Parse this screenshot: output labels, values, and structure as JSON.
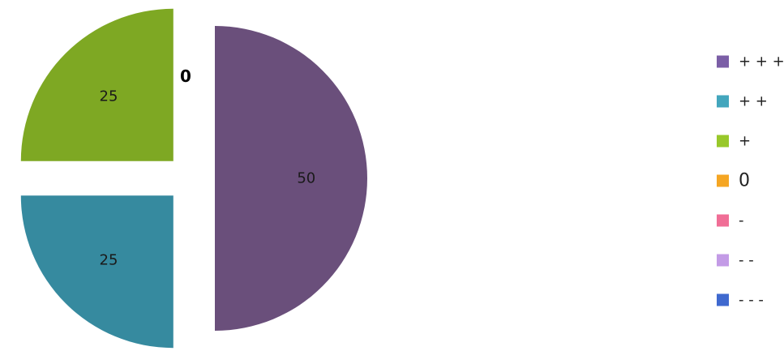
{
  "chart_data": {
    "type": "pie",
    "style": "exploded",
    "categories": [
      "+ + +",
      "+ +",
      "+",
      "0",
      "-",
      "- -",
      "- - -"
    ],
    "values": [
      50,
      25,
      25,
      0,
      0,
      0,
      0
    ],
    "data_labels": [
      "50",
      "25",
      "25",
      "0",
      "",
      "",
      ""
    ],
    "colors": [
      "#6a4f7b",
      "#368a9f",
      "#7ea823",
      "#f5a623",
      "#f06e96",
      "#c39be6",
      "#3f69cf"
    ],
    "legend_colors": [
      "#7b5ea6",
      "#43a6bd",
      "#98c82a",
      "#f5a623",
      "#f06e96",
      "#c39be6",
      "#3f69cf"
    ],
    "legend_position": "right",
    "title": ""
  }
}
